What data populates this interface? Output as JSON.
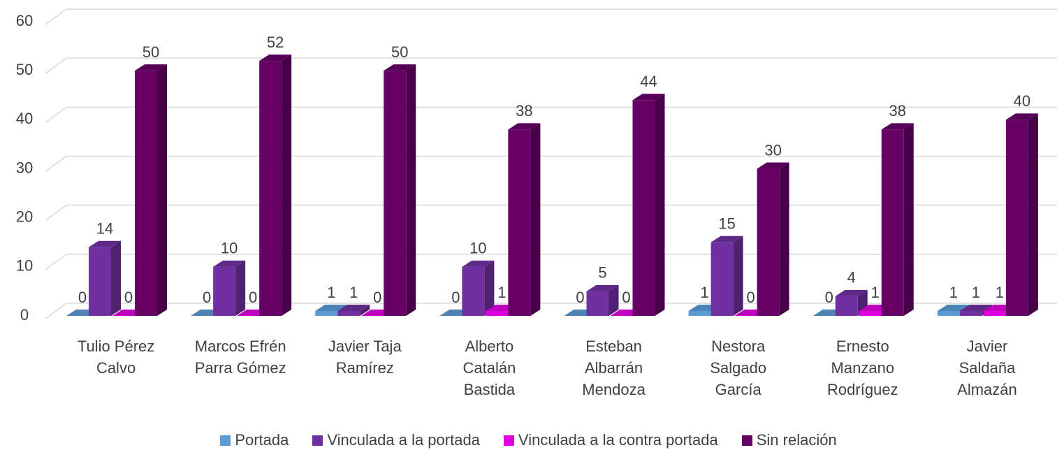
{
  "chart_data": {
    "type": "bar3d",
    "categories": [
      "Tulio Pérez Calvo",
      "Marcos Efrén Parra Gómez",
      "Javier Taja Ramírez",
      "Alberto Catalán Bastida",
      "Esteban Albarrán Mendoza",
      "Nestora Salgado García",
      "Ernesto Manzano Rodríguez",
      "Javier Saldaña Almazán"
    ],
    "series": [
      {
        "name": "Portada",
        "color": "#5b9bd5",
        "values": [
          0,
          0,
          1,
          0,
          0,
          1,
          0,
          1
        ]
      },
      {
        "name": "Vinculada a la portada",
        "color": "#7030a0",
        "values": [
          14,
          10,
          1,
          10,
          5,
          15,
          4,
          1
        ]
      },
      {
        "name": "Vinculada a la contra portada",
        "color": "#e000e0",
        "values": [
          0,
          0,
          0,
          1,
          0,
          0,
          1,
          1
        ]
      },
      {
        "name": "Sin relación",
        "color": "#660066",
        "values": [
          50,
          52,
          50,
          38,
          44,
          30,
          38,
          40
        ]
      }
    ],
    "ylim": [
      0,
      60
    ],
    "yticks": [
      0,
      10,
      20,
      30,
      40,
      50,
      60
    ],
    "grid": true,
    "legend": "bottom"
  }
}
